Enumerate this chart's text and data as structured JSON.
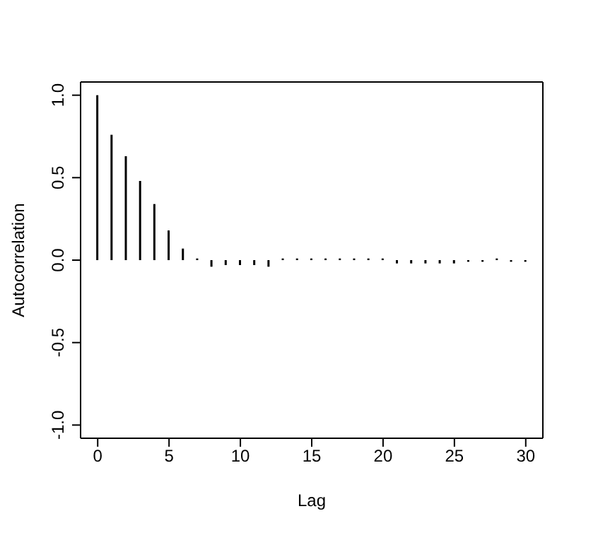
{
  "chart_data": {
    "type": "bar",
    "xlabel": "Lag",
    "ylabel": "Autocorrelation",
    "x": [
      0,
      1,
      2,
      3,
      4,
      5,
      6,
      7,
      8,
      9,
      10,
      11,
      12,
      13,
      14,
      15,
      16,
      17,
      18,
      19,
      20,
      21,
      22,
      23,
      24,
      25,
      26,
      27,
      28,
      29,
      30
    ],
    "values": [
      1.0,
      0.76,
      0.63,
      0.48,
      0.34,
      0.18,
      0.07,
      0.01,
      -0.04,
      -0.03,
      -0.03,
      -0.03,
      -0.04,
      0.01,
      0.01,
      0.01,
      0.01,
      0.01,
      0.01,
      0.01,
      0.01,
      -0.02,
      -0.02,
      -0.02,
      -0.02,
      -0.02,
      -0.01,
      -0.01,
      0.01,
      -0.01,
      -0.01
    ],
    "color": "#000000",
    "xlim": [
      -1.2,
      31.2
    ],
    "xticks": [
      0,
      5,
      10,
      15,
      20,
      25,
      30
    ],
    "ylim": [
      -1.08,
      1.08
    ],
    "yticks": [
      {
        "value": -1,
        "label": "-1.0"
      },
      -0.5,
      {
        "value": 0,
        "label": "0.0"
      },
      0.5,
      {
        "value": 1,
        "label": "1.0"
      }
    ],
    "grid": false,
    "legend": false
  }
}
